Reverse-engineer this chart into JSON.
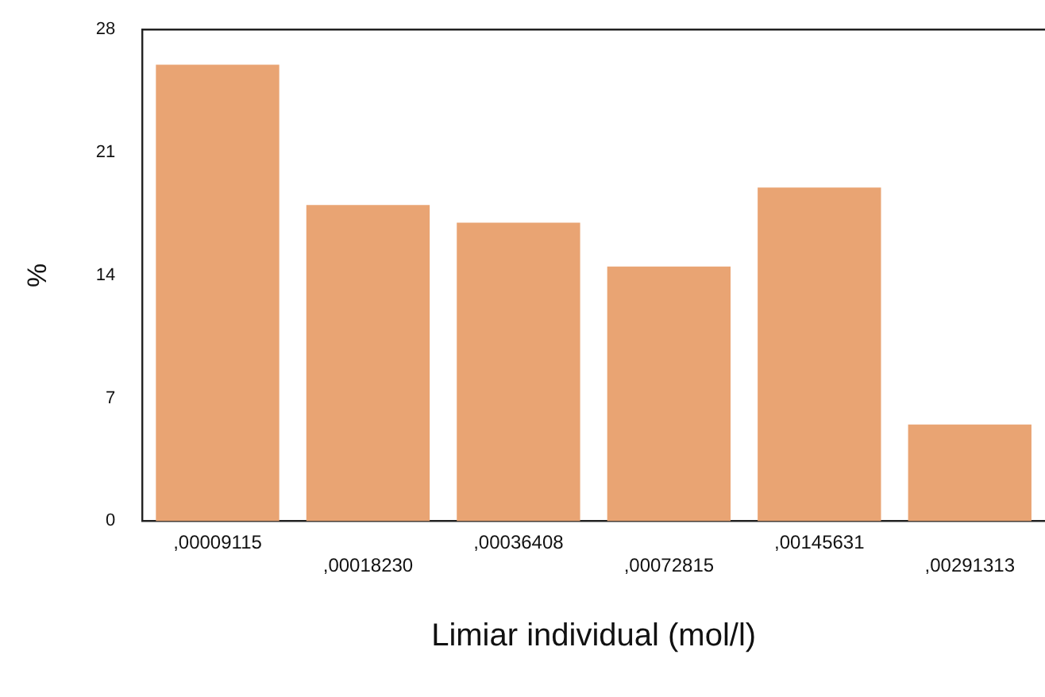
{
  "chart_data": {
    "type": "bar",
    "xlabel": "Limiar individual (mol/l)",
    "ylabel": "%",
    "categories": [
      ",00009115",
      ",00018230",
      ",00036408",
      ",00072815",
      ",00145631",
      ",00291313"
    ],
    "values": [
      26,
      18,
      17,
      14.5,
      19,
      5.5
    ],
    "color": "#e9a473",
    "ylim": [
      0,
      28
    ],
    "yticks": [
      0,
      7,
      14,
      21,
      28
    ],
    "grid": false,
    "legend": false
  }
}
